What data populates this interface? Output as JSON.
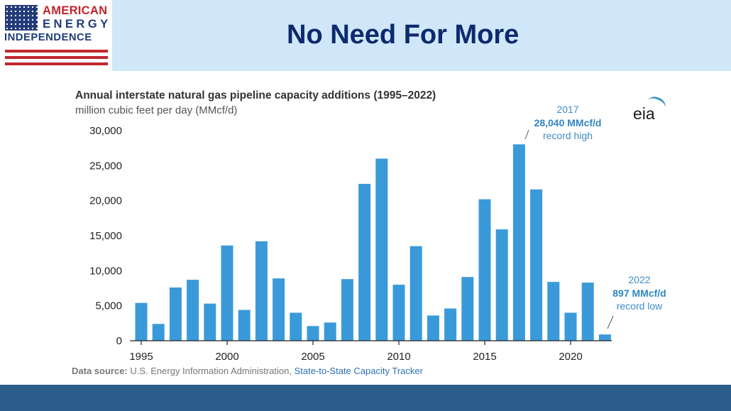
{
  "brand": {
    "line1": "AMERICAN",
    "line2": "ENERGY",
    "line3": "INDEPENDENCE"
  },
  "page_title": "No Need For More",
  "colors": {
    "bar": "#3a9ad9",
    "header_bg": "#cfe7f8",
    "title": "#0d2a6e",
    "footer": "#2c5c8a",
    "annotation": "#3c8dc6"
  },
  "chart_data": {
    "type": "bar",
    "title": "Annual interstate natural gas pipeline capacity additions (1995–2022)",
    "subtitle": "million cubic feet per day (MMcf/d)",
    "categories": [
      1995,
      1996,
      1997,
      1998,
      1999,
      2000,
      2001,
      2002,
      2003,
      2004,
      2005,
      2006,
      2007,
      2008,
      2009,
      2010,
      2011,
      2012,
      2013,
      2014,
      2015,
      2016,
      2017,
      2018,
      2019,
      2020,
      2021,
      2022
    ],
    "values": [
      5400,
      2400,
      7600,
      8700,
      5300,
      13600,
      4400,
      14200,
      8900,
      4000,
      2100,
      2600,
      8800,
      22400,
      26000,
      8000,
      13500,
      3600,
      4600,
      9100,
      20200,
      15900,
      28040,
      21600,
      8400,
      4000,
      8300,
      897
    ],
    "x_tick_labels": [
      "1995",
      "2000",
      "2005",
      "2010",
      "2015",
      "2020"
    ],
    "y_tick_labels": [
      "0",
      "5,000",
      "10,000",
      "15,000",
      "20,000",
      "25,000",
      "30,000"
    ],
    "ylim": [
      0,
      30000
    ],
    "grid": false,
    "source": {
      "label": "Data source:",
      "text": " U.S. Energy Information Administration, ",
      "link": "State-to-State Capacity Tracker"
    },
    "logo": "eia",
    "annotations": {
      "high": {
        "year": "2017",
        "value": "28,040 MMcf/d",
        "note": "record high"
      },
      "low": {
        "year": "2022",
        "value": "897 MMcf/d",
        "note": "record low"
      }
    }
  }
}
